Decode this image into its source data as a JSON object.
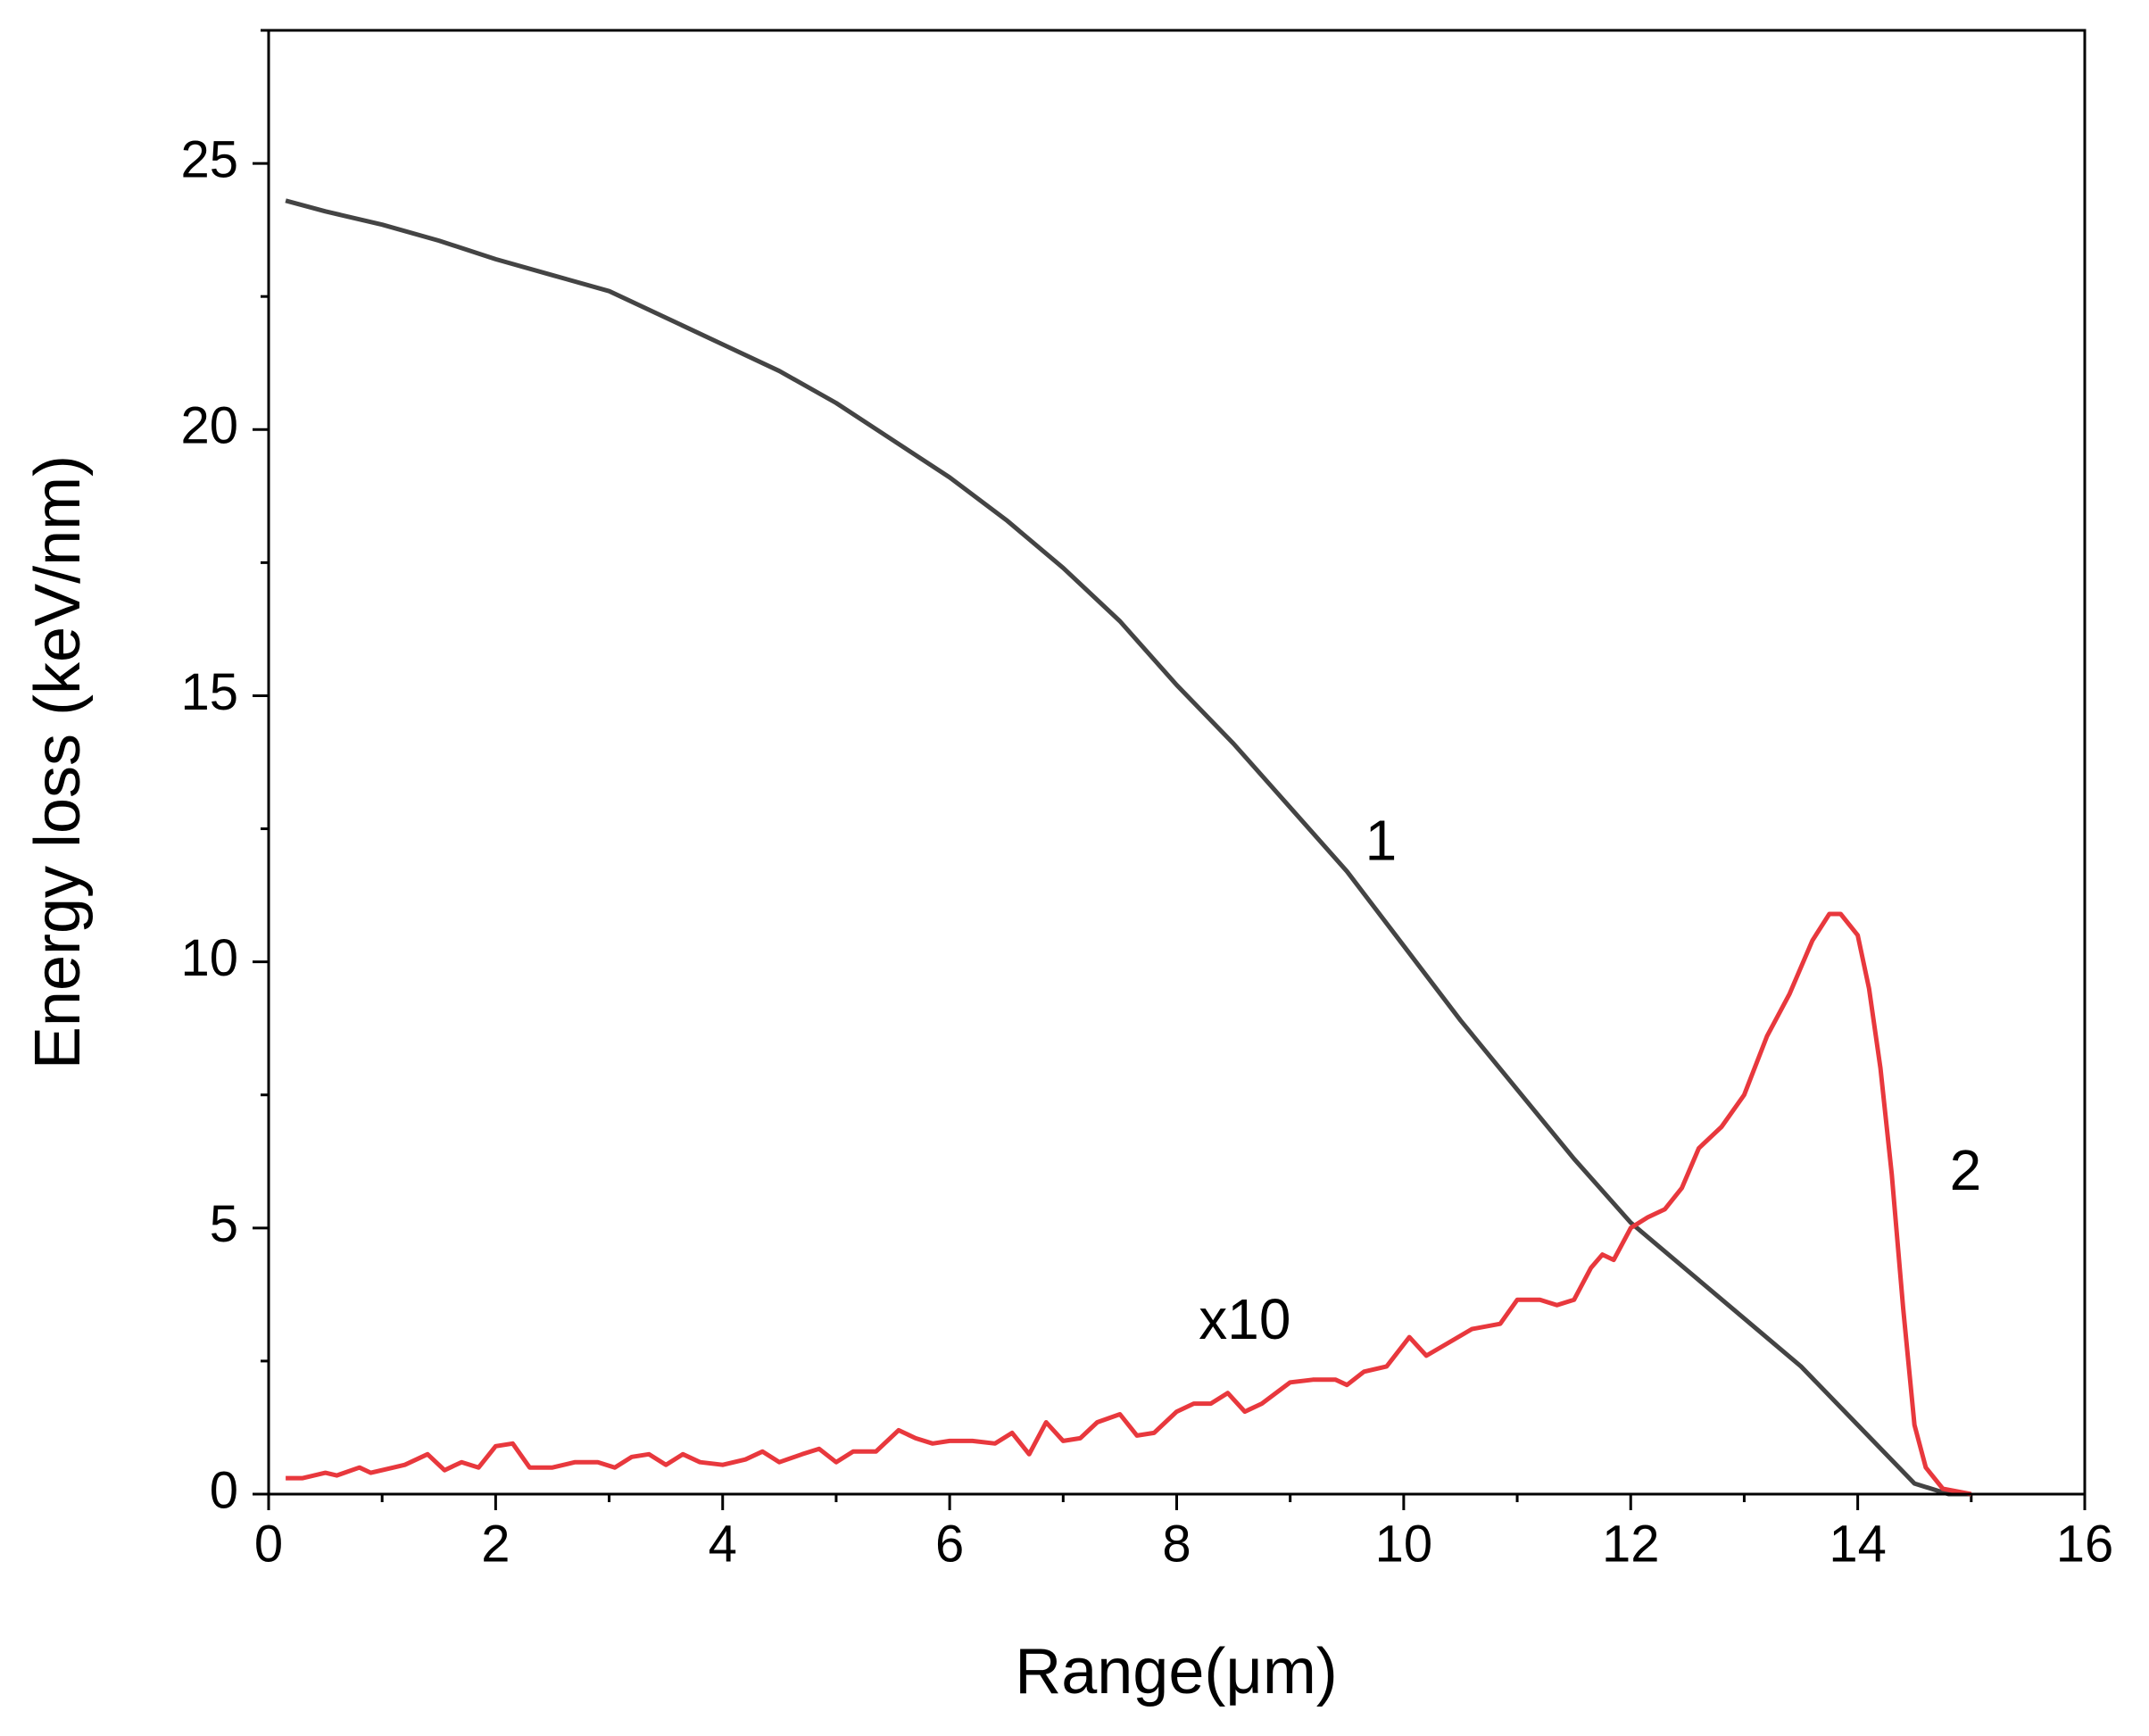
{
  "chart_data": {
    "type": "line",
    "x_label": "Range(μm)",
    "y_label": "Energy loss (keV/nm)",
    "xlim": [
      0,
      16
    ],
    "xticks": [
      0,
      2,
      4,
      6,
      8,
      10,
      12,
      14,
      16
    ],
    "ylim": [
      0,
      27.5
    ],
    "yticks": [
      0,
      5,
      10,
      15,
      20,
      25
    ],
    "grid": false,
    "annotations": [
      "x10"
    ],
    "series": [
      {
        "name": "1",
        "color": "#444444",
        "x": [
          0.15,
          0.5,
          1,
          1.5,
          2,
          2.5,
          3,
          3.5,
          4,
          4.5,
          5,
          5.5,
          6,
          6.5,
          7,
          7.5,
          8,
          8.5,
          9,
          9.5,
          10,
          10.5,
          11,
          11.5,
          12,
          12.5,
          13,
          13.5,
          14,
          14.5,
          14.8,
          15
        ],
        "values": [
          24.3,
          24.1,
          23.85,
          23.55,
          23.2,
          22.9,
          22.6,
          22.1,
          21.6,
          21.1,
          20.5,
          19.8,
          19.1,
          18.3,
          17.4,
          16.4,
          15.2,
          14.1,
          12.9,
          11.7,
          10.3,
          8.9,
          7.6,
          6.3,
          5.1,
          4.2,
          3.3,
          2.4,
          1.3,
          0.2,
          0,
          0
        ]
      },
      {
        "name": "2",
        "color": "#e8383d",
        "x": [
          0.15,
          0.3,
          0.5,
          0.6,
          0.8,
          0.9,
          1.1,
          1.2,
          1.4,
          1.55,
          1.7,
          1.85,
          2.0,
          2.15,
          2.3,
          2.5,
          2.7,
          2.9,
          3.05,
          3.2,
          3.35,
          3.5,
          3.65,
          3.8,
          4.0,
          4.2,
          4.35,
          4.5,
          4.7,
          4.85,
          5.0,
          5.15,
          5.35,
          5.55,
          5.7,
          5.85,
          6.0,
          6.2,
          6.4,
          6.55,
          6.7,
          6.85,
          7.0,
          7.15,
          7.3,
          7.5,
          7.65,
          7.8,
          8.0,
          8.15,
          8.3,
          8.45,
          8.6,
          8.75,
          9.0,
          9.2,
          9.4,
          9.5,
          9.65,
          9.85,
          10.05,
          10.2,
          10.4,
          10.6,
          10.85,
          11.0,
          11.2,
          11.35,
          11.5,
          11.65,
          11.75,
          11.85,
          12.0,
          12.15,
          12.3,
          12.45,
          12.6,
          12.8,
          13.0,
          13.2,
          13.4,
          13.6,
          13.75,
          13.85,
          14.0,
          14.1,
          14.2,
          14.3,
          14.4,
          14.5,
          14.6,
          14.75,
          15.0
        ],
        "values": [
          0.3,
          0.3,
          0.4,
          0.35,
          0.5,
          0.4,
          0.5,
          0.55,
          0.75,
          0.45,
          0.6,
          0.5,
          0.9,
          0.95,
          0.5,
          0.5,
          0.6,
          0.6,
          0.5,
          0.7,
          0.75,
          0.55,
          0.75,
          0.6,
          0.55,
          0.65,
          0.8,
          0.6,
          0.75,
          0.85,
          0.6,
          0.8,
          0.8,
          1.2,
          1.05,
          0.95,
          1.0,
          1.0,
          0.95,
          1.15,
          0.75,
          1.35,
          1.0,
          1.05,
          1.35,
          1.5,
          1.1,
          1.15,
          1.55,
          1.7,
          1.7,
          1.9,
          1.55,
          1.7,
          2.1,
          2.15,
          2.15,
          2.05,
          2.3,
          2.4,
          2.95,
          2.6,
          2.85,
          3.1,
          3.2,
          3.65,
          3.65,
          3.55,
          3.65,
          4.25,
          4.5,
          4.4,
          5.0,
          5.2,
          5.35,
          5.75,
          6.5,
          6.9,
          7.5,
          8.6,
          9.4,
          10.4,
          10.9,
          10.9,
          10.5,
          9.5,
          8.0,
          6.0,
          3.5,
          1.3,
          0.5,
          0.1,
          0.0
        ]
      }
    ]
  }
}
